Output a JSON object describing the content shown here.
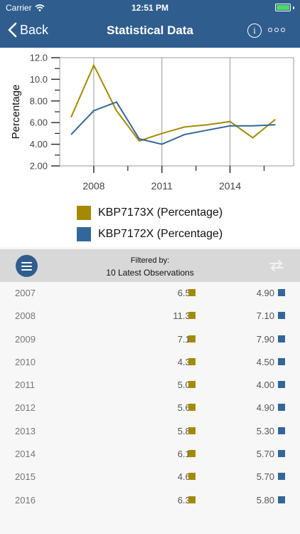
{
  "status": {
    "carrier": "Carrier",
    "time": "12:51 PM"
  },
  "nav": {
    "back_label": "Back",
    "title": "Statistical Data",
    "info_icon": "i"
  },
  "colors": {
    "header": "#2f5d8e",
    "series1": "#a38a00",
    "series2": "#336699"
  },
  "chart_data": {
    "type": "line",
    "ylabel": "Percentage",
    "xlabel": "",
    "x": [
      2007,
      2008,
      2009,
      2010,
      2011,
      2012,
      2013,
      2014,
      2015,
      2016
    ],
    "x_ticks": [
      "2008",
      "2011",
      "2014"
    ],
    "y_ticks": [
      "2.00",
      "4.00",
      "6.00",
      "8.00",
      "10.0",
      "12.0"
    ],
    "ylim": [
      2,
      12
    ],
    "grid": true,
    "series": [
      {
        "name": "KBP7173X (Percentage)",
        "color": "#a38a00",
        "values": [
          6.5,
          11.3,
          7.1,
          4.3,
          5.0,
          5.6,
          5.8,
          6.1,
          4.6,
          6.3
        ]
      },
      {
        "name": "KBP7172X (Percentage)",
        "color": "#336699",
        "values": [
          4.9,
          7.1,
          7.9,
          4.5,
          4.0,
          4.9,
          5.3,
          5.7,
          5.7,
          5.8
        ]
      }
    ]
  },
  "legend": [
    {
      "label": "KBP7173X (Percentage)"
    },
    {
      "label": "KBP7172X (Percentage)"
    }
  ],
  "filter": {
    "title": "Filtered by:",
    "value": "10 Latest Observations"
  },
  "table": [
    {
      "year": "2007",
      "v1": "6.50",
      "v2": "4.90"
    },
    {
      "year": "2008",
      "v1": "11.30",
      "v2": "7.10"
    },
    {
      "year": "2009",
      "v1": "7.10",
      "v2": "7.90"
    },
    {
      "year": "2010",
      "v1": "4.30",
      "v2": "4.50"
    },
    {
      "year": "2011",
      "v1": "5.00",
      "v2": "4.00"
    },
    {
      "year": "2012",
      "v1": "5.60",
      "v2": "4.90"
    },
    {
      "year": "2013",
      "v1": "5.80",
      "v2": "5.30"
    },
    {
      "year": "2014",
      "v1": "6.10",
      "v2": "5.70"
    },
    {
      "year": "2015",
      "v1": "4.60",
      "v2": "5.70"
    },
    {
      "year": "2016",
      "v1": "6.30",
      "v2": "5.80"
    }
  ]
}
